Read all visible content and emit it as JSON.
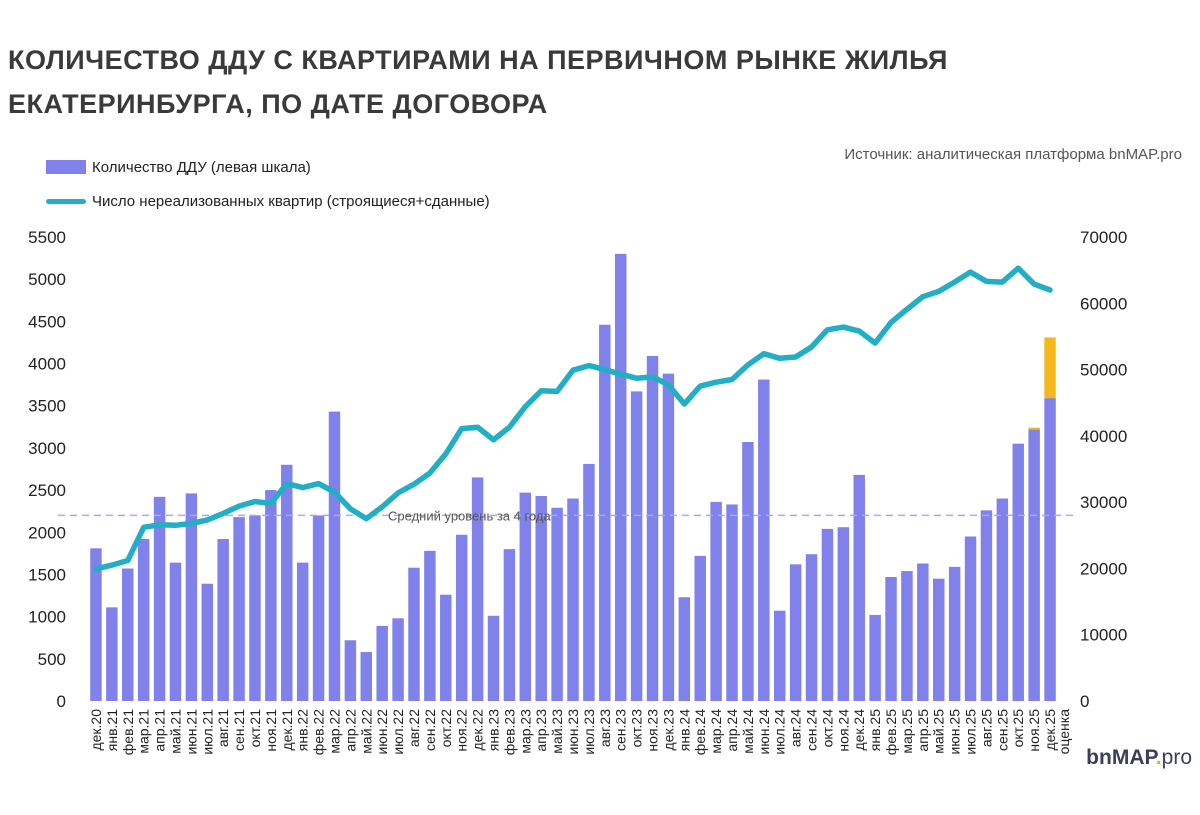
{
  "chart_data": {
    "type": "bar+line",
    "title": "КОЛИЧЕСТВО ДДУ С КВАРТИРАМИ НА ПЕРВИЧНОМ РЫНКЕ ЖИЛЬЯ ЕКАТЕРИНБУРГА, ПО ДАТЕ ДОГОВОРА",
    "source": "Источник: аналитическая платформа bnMAP.pro",
    "categories": [
      "дек.20",
      "янв.21",
      "фев.21",
      "мар.21",
      "апр.21",
      "май.21",
      "июн.21",
      "июл.21",
      "авг.21",
      "сен.21",
      "окт.21",
      "ноя.21",
      "дек.21",
      "янв.22",
      "фев.22",
      "мар.22",
      "апр.22",
      "май.22",
      "июн.22",
      "июл.22",
      "авг.22",
      "сен.22",
      "окт.22",
      "ноя.22",
      "дек.22",
      "янв.23",
      "фев.23",
      "мар.23",
      "апр.23",
      "май.23",
      "июн.23",
      "июл.23",
      "авг.23",
      "сен.23",
      "окт.23",
      "ноя.23",
      "дек.23",
      "янв.24",
      "фев.24",
      "мар.24",
      "апр.24",
      "май.24",
      "июн.24",
      "июл.24",
      "авг.24",
      "сен.24",
      "окт.24",
      "ноя.24",
      "дек.24",
      "янв.25",
      "фев.25",
      "мар.25",
      "апр.25",
      "май.25",
      "июн.25",
      "июл.25",
      "авг.25",
      "сен.25",
      "окт.25",
      "ноя.25",
      "дек.25"
    ],
    "extra_label": "оценка",
    "series": [
      {
        "name": "Количество ДДУ (левая шкала)",
        "axis": "left",
        "color": "#8081ea",
        "values": [
          1810,
          1110,
          1570,
          1920,
          2420,
          1640,
          2460,
          1390,
          1920,
          2180,
          2200,
          2500,
          2800,
          1640,
          2200,
          3430,
          720,
          580,
          890,
          980,
          1580,
          1780,
          1260,
          1970,
          2650,
          1010,
          1800,
          2470,
          2430,
          2290,
          2400,
          2810,
          4460,
          5300,
          3670,
          4090,
          3880,
          1230,
          1720,
          2360,
          2330,
          3070,
          3810,
          1070,
          1620,
          1740,
          2040,
          2060,
          2680,
          1020,
          1470,
          1540,
          1630,
          1450,
          1590,
          1950,
          2260,
          2400,
          3050,
          3220,
          3590
        ]
      },
      {
        "name": "оценка",
        "axis": "left",
        "color": "#f6b91c",
        "stack_on": "Количество ДДУ (левая шкала)",
        "values": [
          0,
          0,
          0,
          0,
          0,
          0,
          0,
          0,
          0,
          0,
          0,
          0,
          0,
          0,
          0,
          0,
          0,
          0,
          0,
          0,
          0,
          0,
          0,
          0,
          0,
          0,
          0,
          0,
          0,
          0,
          0,
          0,
          0,
          0,
          0,
          0,
          0,
          0,
          0,
          0,
          0,
          0,
          0,
          0,
          0,
          0,
          0,
          0,
          0,
          0,
          0,
          0,
          0,
          0,
          0,
          0,
          0,
          0,
          0,
          20,
          720
        ]
      },
      {
        "name": "Число нереализованных квартир (строящиеся+сданные)",
        "axis": "right",
        "color": "#22afc6",
        "values": [
          19900,
          20500,
          21200,
          26200,
          26600,
          26500,
          26800,
          27300,
          28300,
          29400,
          30100,
          29800,
          32800,
          32200,
          32800,
          31500,
          29000,
          27500,
          29300,
          31400,
          32700,
          34400,
          37300,
          41100,
          41300,
          39400,
          41300,
          44400,
          46800,
          46700,
          49900,
          50600,
          50000,
          49300,
          48700,
          48900,
          47700,
          44800,
          47500,
          48100,
          48500,
          50700,
          52400,
          51700,
          51900,
          53400,
          56000,
          56400,
          55800,
          54000,
          57100,
          59100,
          61000,
          61800,
          63200,
          64700,
          63300,
          63200,
          65300,
          62900,
          62000
        ]
      }
    ],
    "reference_line": {
      "label": "Средний уровень за 4 года",
      "value": 2200,
      "axis": "left"
    },
    "left_axis": {
      "ylim": [
        0,
        5500
      ],
      "ticks": [
        "0",
        "500",
        "1000",
        "1500",
        "2000",
        "2500",
        "3000",
        "3500",
        "4000",
        "4500",
        "5000",
        "5500"
      ]
    },
    "right_axis": {
      "ylim": [
        0,
        70000
      ],
      "ticks": [
        "0",
        "10000",
        "20000",
        "30000",
        "40000",
        "50000",
        "60000",
        "70000"
      ]
    },
    "legend_placement": "top-left"
  },
  "logo": {
    "bn": "bn",
    "map": "MAP",
    "dot": ".",
    "pro": "pro"
  }
}
